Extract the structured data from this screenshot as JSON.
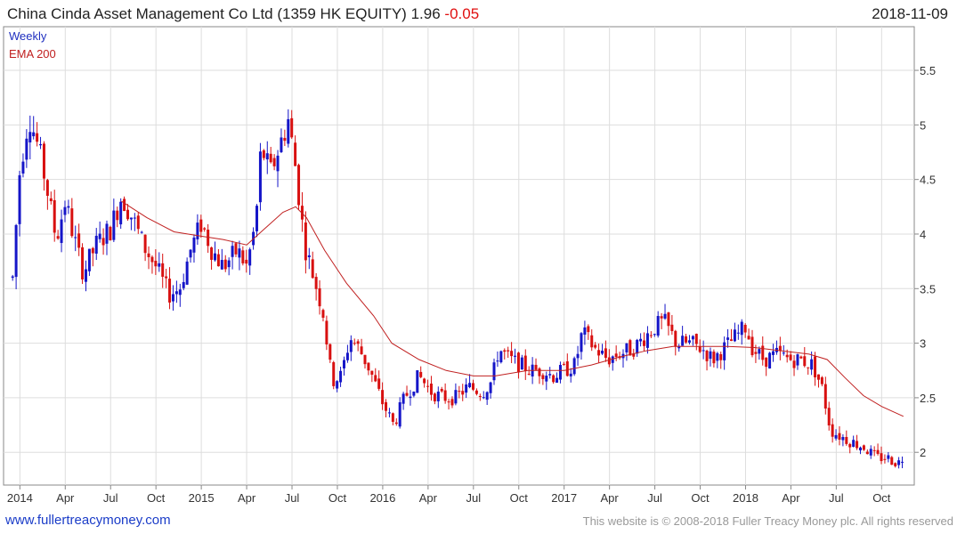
{
  "header": {
    "title": "China Cinda Asset Management Co Ltd (1359 HK EQUITY)",
    "last_price": "1.96",
    "change": "-0.05",
    "date": "2018-11-09"
  },
  "footer": {
    "site_link": "www.fullertreacymoney.com",
    "copyright": "This website is © 2008-2018 Fuller Treacy Money plc. All rights reserved"
  },
  "colors": {
    "up": "#1515c8",
    "down": "#d81010",
    "ema": "#c02020",
    "grid": "#dddddd"
  },
  "chart_data": {
    "type": "candlestick",
    "frequency": "Weekly",
    "legend": [
      {
        "name": "Weekly",
        "color": "#2030c0"
      },
      {
        "name": "EMA 200",
        "color": "#c02020"
      }
    ],
    "x_ticks": [
      "2014",
      "Apr",
      "Jul",
      "Oct",
      "2015",
      "Apr",
      "Jul",
      "Oct",
      "2016",
      "Apr",
      "Jul",
      "Oct",
      "2017",
      "Apr",
      "Jul",
      "Oct",
      "2018",
      "Apr",
      "Jul",
      "Oct"
    ],
    "y_ticks": [
      "2",
      "2.5",
      "3",
      "3.5",
      "4",
      "4.5",
      "5",
      "5.5"
    ],
    "ylim": [
      1.7,
      5.9
    ],
    "grid": true,
    "y_axis_side": "right",
    "close_path": [
      [
        2013.96,
        3.6
      ],
      [
        2014.0,
        4.6
      ],
      [
        2014.05,
        5.1
      ],
      [
        2014.1,
        4.8
      ],
      [
        2014.14,
        4.5
      ],
      [
        2014.2,
        3.95
      ],
      [
        2014.25,
        4.3
      ],
      [
        2014.3,
        3.95
      ],
      [
        2014.35,
        3.65
      ],
      [
        2014.42,
        3.9
      ],
      [
        2014.5,
        4.05
      ],
      [
        2014.56,
        4.35
      ],
      [
        2014.62,
        4.15
      ],
      [
        2014.68,
        3.9
      ],
      [
        2014.75,
        3.7
      ],
      [
        2014.82,
        3.45
      ],
      [
        2014.88,
        3.5
      ],
      [
        2014.94,
        3.85
      ],
      [
        2015.0,
        4.1
      ],
      [
        2015.06,
        3.85
      ],
      [
        2015.12,
        3.7
      ],
      [
        2015.2,
        3.85
      ],
      [
        2015.25,
        3.7
      ],
      [
        2015.3,
        4.1
      ],
      [
        2015.33,
        4.8
      ],
      [
        2015.38,
        4.55
      ],
      [
        2015.44,
        4.85
      ],
      [
        2015.48,
        5.05
      ],
      [
        2015.52,
        4.6
      ],
      [
        2015.57,
        3.9
      ],
      [
        2015.62,
        3.6
      ],
      [
        2015.67,
        3.3
      ],
      [
        2015.72,
        2.65
      ],
      [
        2015.77,
        2.7
      ],
      [
        2015.82,
        3.05
      ],
      [
        2015.87,
        2.95
      ],
      [
        2015.93,
        2.75
      ],
      [
        2016.0,
        2.45
      ],
      [
        2016.06,
        2.25
      ],
      [
        2016.12,
        2.5
      ],
      [
        2016.2,
        2.7
      ],
      [
        2016.27,
        2.55
      ],
      [
        2016.33,
        2.5
      ],
      [
        2016.4,
        2.5
      ],
      [
        2016.47,
        2.6
      ],
      [
        2016.55,
        2.55
      ],
      [
        2016.6,
        2.65
      ],
      [
        2016.64,
        2.95
      ],
      [
        2016.7,
        2.85
      ],
      [
        2016.76,
        2.8
      ],
      [
        2016.82,
        2.75
      ],
      [
        2016.88,
        2.75
      ],
      [
        2016.94,
        2.7
      ],
      [
        2017.0,
        2.75
      ],
      [
        2017.06,
        2.8
      ],
      [
        2017.1,
        3.1
      ],
      [
        2017.17,
        2.95
      ],
      [
        2017.24,
        2.85
      ],
      [
        2017.3,
        2.9
      ],
      [
        2017.38,
        2.95
      ],
      [
        2017.44,
        3.05
      ],
      [
        2017.5,
        3.15
      ],
      [
        2017.55,
        3.2
      ],
      [
        2017.62,
        3.0
      ],
      [
        2017.7,
        3.0
      ],
      [
        2017.76,
        2.95
      ],
      [
        2017.82,
        2.85
      ],
      [
        2017.88,
        2.95
      ],
      [
        2017.94,
        3.05
      ],
      [
        2018.0,
        3.15
      ],
      [
        2018.04,
        2.95
      ],
      [
        2018.1,
        2.85
      ],
      [
        2018.18,
        2.9
      ],
      [
        2018.24,
        2.85
      ],
      [
        2018.3,
        2.85
      ],
      [
        2018.37,
        2.8
      ],
      [
        2018.42,
        2.6
      ],
      [
        2018.47,
        2.2
      ],
      [
        2018.52,
        2.15
      ],
      [
        2018.58,
        2.1
      ],
      [
        2018.65,
        2.05
      ],
      [
        2018.72,
        1.95
      ],
      [
        2018.78,
        1.95
      ],
      [
        2018.84,
        1.9
      ],
      [
        2018.87,
        1.96
      ]
    ],
    "ema_path": [
      [
        2014.56,
        4.3
      ],
      [
        2014.7,
        4.15
      ],
      [
        2014.85,
        4.02
      ],
      [
        2015.0,
        3.98
      ],
      [
        2015.12,
        3.95
      ],
      [
        2015.25,
        3.9
      ],
      [
        2015.35,
        4.05
      ],
      [
        2015.45,
        4.2
      ],
      [
        2015.52,
        4.25
      ],
      [
        2015.58,
        4.15
      ],
      [
        2015.68,
        3.85
      ],
      [
        2015.8,
        3.55
      ],
      [
        2015.95,
        3.25
      ],
      [
        2016.05,
        3.0
      ],
      [
        2016.2,
        2.85
      ],
      [
        2016.35,
        2.75
      ],
      [
        2016.5,
        2.7
      ],
      [
        2016.62,
        2.7
      ],
      [
        2016.8,
        2.75
      ],
      [
        2017.0,
        2.75
      ],
      [
        2017.15,
        2.8
      ],
      [
        2017.3,
        2.87
      ],
      [
        2017.45,
        2.93
      ],
      [
        2017.6,
        2.97
      ],
      [
        2017.75,
        2.97
      ],
      [
        2017.9,
        2.97
      ],
      [
        2018.05,
        2.96
      ],
      [
        2018.2,
        2.93
      ],
      [
        2018.35,
        2.9
      ],
      [
        2018.45,
        2.85
      ],
      [
        2018.55,
        2.68
      ],
      [
        2018.65,
        2.52
      ],
      [
        2018.75,
        2.42
      ],
      [
        2018.87,
        2.33
      ]
    ]
  }
}
